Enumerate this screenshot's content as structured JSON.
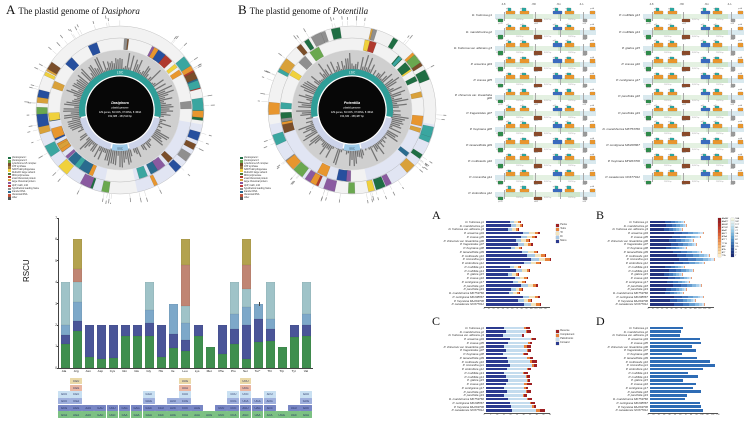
{
  "titles": {
    "panel_a": {
      "letter": "A",
      "text": "The plastid genome of",
      "species": "Dasiphora"
    },
    "panel_b": {
      "letter": "B",
      "text": "The plastid genome of",
      "species": "Potentilla"
    }
  },
  "circle_a": {
    "seed": 7,
    "center_lines": [
      "Dasiphora",
      "plastid genome",
      "129 genes, 84 CDS, 37 tRNA, 8 rRNA",
      "152,385 - 153,519 bp"
    ],
    "lsc_label": "LSC",
    "ssc_label": "SSC"
  },
  "circle_b": {
    "seed": 13,
    "center_lines": [
      "Potentilla",
      "plastid genome",
      "129 genes, 84 CDS, 37 tRNA, 8 rRNA",
      "154,330 - 158,487 bp"
    ],
    "lsc_label": "LSC",
    "ssc_label": "SSC"
  },
  "genome_legend": [
    {
      "label": "photosystem I",
      "color": "#1f6e43"
    },
    {
      "label": "photosystem II",
      "color": "#6aa84f"
    },
    {
      "label": "cytochrome b/f complex",
      "color": "#7a4e2a"
    },
    {
      "label": "ATP synthase",
      "color": "#9f7d3a"
    },
    {
      "label": "NADH dehydrogenase",
      "color": "#f5d33f"
    },
    {
      "label": "RubisCO large subunit",
      "color": "#4f7a3a"
    },
    {
      "label": "RNA polymerase",
      "color": "#b03a2e"
    },
    {
      "label": "small ribosomal protein",
      "color": "#d9a13a"
    },
    {
      "label": "large ribosomal protein",
      "color": "#8a5aa0"
    },
    {
      "label": "clpP, matK, infA",
      "color": "#c23b3b"
    },
    {
      "label": "hypothetical reading frame",
      "color": "#8f8f8f"
    },
    {
      "label": "transfer RNA",
      "color": "#2a6b8f"
    },
    {
      "label": "ribosomal RNA",
      "color": "#c2533b"
    },
    {
      "label": "other",
      "color": "#555555"
    }
  ],
  "gene_palette": [
    "#b03a2e",
    "#1f6e43",
    "#6aa84f",
    "#f0d13c",
    "#d9a13a",
    "#2a6b8f",
    "#3aa6a0",
    "#8a5aa0",
    "#7a4e2a",
    "#e8962e",
    "#8f8f8f",
    "#264f9e"
  ],
  "species": [
    "D. fruticosa g1",
    "D. mandshurica g2",
    "D. fruticosa var. albicans g3",
    "P. anserina g04",
    "P. crassa g05",
    "P. chinensis var. lineariloba g06",
    "P. fragarioides g07",
    "P. freyniana g08",
    "P. tanacetifolia g09",
    "P. multicaulis g10",
    "P. micrantha g11",
    "P. stolonifera g12",
    "P. multifida g13",
    "P. multifida g14",
    "P. glabra g15",
    "P. crassa g16",
    "P. centigrana g17",
    "P. parvifolia g18",
    "P. parvifolia g19",
    "D. mandshurica MK753766",
    "P. centigrana MK208867",
    "P. freyniana MH263706",
    "P. canadensis NC677012"
  ],
  "junctions": {
    "left_count": 12,
    "junction_labels": [
      "JLB",
      "JSB",
      "JSA",
      "JLA"
    ],
    "boundaries": [
      9,
      38,
      62,
      84
    ],
    "regions": [
      {
        "name": "LSC",
        "color": "#d9e9ee",
        "w": 9,
        "len": "85,742 bp"
      },
      {
        "name": "IRb",
        "color": "#cfe6cd",
        "w": 29,
        "len": "25,870 bp"
      },
      {
        "name": "SSC",
        "color": "#e4f1e2",
        "w": 24,
        "len": "18,347 bp"
      },
      {
        "name": "IRa",
        "color": "#cfe6cd",
        "w": 22,
        "len": "25,870 bp"
      },
      {
        "name": "LSC",
        "color": "#d9e9ee",
        "w": 16,
        "len": ""
      }
    ],
    "genes": [
      {
        "name": "rps19",
        "x": 3,
        "w": 5,
        "c": "#2e8b4a",
        "side": "b",
        "lab": "rps19"
      },
      {
        "name": "rpl2",
        "x": 10.5,
        "w": 8.5,
        "c": "#e8962e",
        "side": "a",
        "lab": "rpl2"
      },
      {
        "name": "trnI",
        "x": 12,
        "w": 3.2,
        "c": "#2aa7a0",
        "side": "t"
      },
      {
        "name": "ycf1",
        "x": 24,
        "w": 8.5,
        "c": "#e8962e",
        "side": "a",
        "lab": "ycf1"
      },
      {
        "name": "trnN",
        "x": 26,
        "w": 3.2,
        "c": "#2aa7a0",
        "side": "t"
      },
      {
        "name": "ndhF",
        "x": 37,
        "w": 7.5,
        "c": "#8a4a2a",
        "side": "b",
        "lab": "ndhF"
      },
      {
        "name": "ycf1",
        "x": 55,
        "w": 8.5,
        "c": "#3a6bbf",
        "side": "a",
        "lab": "ycf1"
      },
      {
        "name": "trnN",
        "x": 57,
        "w": 3.2,
        "c": "#2aa7a0",
        "side": "t"
      },
      {
        "name": "rpl2",
        "x": 67,
        "w": 8.5,
        "c": "#e8962e",
        "side": "a",
        "lab": "rpl2"
      },
      {
        "name": "trnI",
        "x": 69,
        "w": 3.2,
        "c": "#2aa7a0",
        "side": "t"
      },
      {
        "name": "trnH",
        "x": 83.5,
        "w": 4.5,
        "c": "#9a9a9a",
        "side": "b",
        "lab": "trnH"
      },
      {
        "name": "psbA",
        "x": 90.5,
        "w": 5,
        "c": "#e8962e",
        "side": "a",
        "lab": "psbA"
      }
    ]
  },
  "chart_data": [
    {
      "type": "bar",
      "stacked": true,
      "title": "",
      "ylabel": "RSCU",
      "ylim": [
        0,
        7
      ],
      "yticks": [
        0,
        1,
        2,
        3,
        4,
        5,
        6,
        7
      ],
      "grid": false,
      "seg_colors": [
        "#3f8f4f",
        "#4a5598",
        "#7da8c9",
        "#9fc3c8",
        "#c08573",
        "#b3a24e"
      ],
      "cell_colors": [
        "#7cc183",
        "#7886c4",
        "#9fb0dd",
        "#c9e0f2",
        "#eab6a2",
        "#ead9a8"
      ],
      "bars": [
        {
          "aa": "Ala",
          "codons": [
            "GCA",
            "GCG",
            "GCC",
            "GCU"
          ],
          "rscu": [
            1.1,
            0.45,
            0.45,
            2.0
          ]
        },
        {
          "aa": "Arg",
          "codons": [
            "AGA",
            "AGG",
            "CGA",
            "CGC",
            "CGG",
            "CGU"
          ],
          "rscu": [
            1.75,
            0.45,
            0.9,
            0.9,
            0.6,
            1.4
          ]
        },
        {
          "aa": "Asn",
          "codons": [
            "AAC",
            "AAU"
          ],
          "rscu": [
            0.5,
            1.5
          ]
        },
        {
          "aa": "Asp",
          "codons": [
            "GAC",
            "GAU"
          ],
          "rscu": [
            0.4,
            1.6
          ]
        },
        {
          "aa": "Cys",
          "codons": [
            "UGC",
            "UGU"
          ],
          "rscu": [
            0.45,
            1.55
          ]
        },
        {
          "aa": "Gln",
          "codons": [
            "CAA",
            "CAG"
          ],
          "rscu": [
            1.5,
            0.5
          ]
        },
        {
          "aa": "Glu",
          "codons": [
            "GAA",
            "GAG"
          ],
          "rscu": [
            1.5,
            0.5
          ]
        },
        {
          "aa": "Gly",
          "codons": [
            "GGA",
            "GGC",
            "GGG",
            "GGU"
          ],
          "rscu": [
            1.5,
            0.6,
            0.6,
            1.3
          ]
        },
        {
          "aa": "His",
          "codons": [
            "CAC",
            "CAU"
          ],
          "rscu": [
            0.5,
            1.5
          ]
        },
        {
          "aa": "Ile",
          "codons": [
            "AUA",
            "AUC",
            "AUU"
          ],
          "rscu": [
            0.95,
            0.65,
            1.4
          ]
        },
        {
          "aa": "Leu",
          "codons": [
            "CUA",
            "CUC",
            "CUG",
            "CUU",
            "UUA",
            "UUG"
          ],
          "rscu": [
            0.8,
            0.5,
            0.8,
            0.8,
            1.9,
            1.2
          ]
        },
        {
          "aa": "Lys",
          "codons": [
            "AAA",
            "AAG"
          ],
          "rscu": [
            1.5,
            0.5
          ]
        },
        {
          "aa": "Met",
          "codons": [
            "AUG"
          ],
          "rscu": [
            1.0
          ]
        },
        {
          "aa": "Phe",
          "codons": [
            "UUC",
            "UUU"
          ],
          "rscu": [
            0.65,
            1.35
          ]
        },
        {
          "aa": "Pro",
          "codons": [
            "CCA",
            "CCC",
            "CCG",
            "CCU"
          ],
          "rscu": [
            1.1,
            0.7,
            0.7,
            1.5
          ]
        },
        {
          "aa": "Ser",
          "codons": [
            "AGC",
            "AGU",
            "UCA",
            "UCC",
            "UCG",
            "UCU"
          ],
          "rscu": [
            0.4,
            1.6,
            0.85,
            0.85,
            1.1,
            1.2
          ]
        },
        {
          "aa": "Ter*",
          "codons": [
            "UAA",
            "UAG",
            "UGA"
          ],
          "rscu": [
            1.2,
            1.1,
            0.7
          ],
          "err": true
        },
        {
          "aa": "Thr",
          "codons": [
            "ACA",
            "ACC",
            "ACG",
            "ACU"
          ],
          "rscu": [
            1.25,
            0.55,
            0.5,
            1.7
          ]
        },
        {
          "aa": "Trp",
          "codons": [
            "UGG"
          ],
          "rscu": [
            1.0
          ]
        },
        {
          "aa": "Tyr",
          "codons": [
            "UAC",
            "UAU"
          ],
          "rscu": [
            1.45,
            0.55
          ]
        },
        {
          "aa": "Val",
          "codons": [
            "GUA",
            "GUC",
            "GUG",
            "GUU"
          ],
          "rscu": [
            1.5,
            0.5,
            0.5,
            1.5
          ]
        }
      ]
    },
    {
      "type": "bar",
      "orientation": "horizontal",
      "stacked": true,
      "letter": "A",
      "series": [
        "Mono",
        "Di",
        "Tri",
        "Tetra",
        "Penta"
      ],
      "colors": [
        "#2b3a8f",
        "#a9c9e5",
        "#f2e4bd",
        "#e8823a",
        "#9e2023"
      ],
      "legend": [
        "Penta",
        "Tetra",
        "Tri",
        "Di",
        "Mono"
      ],
      "legend_colors": [
        "#9e2023",
        "#e8823a",
        "#f2e4bd",
        "#a9c9e5",
        "#2b3a8f"
      ],
      "xlim": [
        0,
        140
      ],
      "xticks": [
        0,
        10,
        20,
        30,
        40,
        50,
        60,
        70,
        80,
        90,
        100,
        110,
        120,
        130
      ],
      "values": [
        [
          50,
          9,
          8,
          5,
          2
        ],
        [
          54,
          10,
          8,
          5,
          2
        ],
        [
          47,
          9,
          7,
          5,
          1
        ],
        [
          78,
          14,
          12,
          7,
          3
        ],
        [
          74,
          13,
          11,
          7,
          3
        ],
        [
          63,
          12,
          10,
          6,
          2
        ],
        [
          68,
          12,
          10,
          6,
          3
        ],
        [
          52,
          10,
          8,
          5,
          2
        ],
        [
          76,
          14,
          11,
          7,
          3
        ],
        [
          88,
          16,
          13,
          8,
          3
        ],
        [
          95,
          17,
          14,
          9,
          3
        ],
        [
          80,
          15,
          12,
          7,
          3
        ],
        [
          50,
          9,
          8,
          5,
          2
        ],
        [
          64,
          12,
          10,
          6,
          2
        ],
        [
          47,
          9,
          7,
          4,
          2
        ],
        [
          61,
          11,
          9,
          6,
          2
        ],
        [
          57,
          11,
          9,
          5,
          2
        ],
        [
          75,
          14,
          11,
          7,
          3
        ],
        [
          53,
          10,
          8,
          5,
          1
        ],
        [
          49,
          9,
          8,
          5,
          1
        ],
        [
          78,
          14,
          12,
          7,
          3
        ],
        [
          68,
          12,
          10,
          6,
          2
        ],
        [
          80,
          15,
          12,
          7,
          3
        ]
      ]
    },
    {
      "type": "bar",
      "orientation": "horizontal",
      "stacked": true,
      "letter": "B",
      "series": [
        "A",
        "T",
        "AT",
        "TA",
        "AAT",
        "ATT",
        "AAAT",
        "AATT"
      ],
      "colors": [
        "#22337f",
        "#2f5aa6",
        "#4579bc",
        "#639bd0",
        "#86b8e0",
        "#abd0ec",
        "#cfe3f4",
        "#e8a07a"
      ],
      "fractions": [
        0.44,
        0.15,
        0.12,
        0.1,
        0.08,
        0.05,
        0.04,
        0.02
      ],
      "totals": [
        74,
        79,
        69,
        114,
        108,
        93,
        99,
        77,
        111,
        128,
        138,
        117,
        74,
        94,
        69,
        89,
        84,
        110,
        77,
        72,
        114,
        98,
        117
      ],
      "xlim": [
        0,
        140
      ],
      "xticks": [
        0,
        10,
        20,
        30,
        40,
        50,
        60,
        70,
        80,
        90,
        100,
        110,
        120,
        130
      ],
      "legend2": {
        "left": [
          {
            "label": "AAAAT",
            "color": "#8e1b1e"
          },
          {
            "label": "AAATT",
            "color": "#9f2020"
          },
          {
            "label": "AATAT",
            "color": "#b02a22"
          },
          {
            "label": "ATTAT",
            "color": "#c13a27"
          },
          {
            "label": "AAAT",
            "color": "#cf4c2d"
          },
          {
            "label": "AATT",
            "color": "#da6136"
          },
          {
            "label": "ATAA",
            "color": "#e37641"
          },
          {
            "label": "ATTT",
            "color": "#ea8b4e"
          },
          {
            "label": "TTTA",
            "color": "#f0a05e"
          },
          {
            "label": "AAT",
            "color": "#f4b573"
          },
          {
            "label": "ATA",
            "color": "#f7c88c"
          },
          {
            "label": "ATT",
            "color": "#fadbaa"
          },
          {
            "label": "TTA",
            "color": "#fcebc8"
          }
        ],
        "right": [
          {
            "label": "TAA",
            "color": "#f2f6e3"
          },
          {
            "label": "TAT",
            "color": "#e2eff0"
          },
          {
            "label": "TCT",
            "color": "#cbe5ef"
          },
          {
            "label": "AG",
            "color": "#b1d8ec"
          },
          {
            "label": "CT",
            "color": "#95c8e5"
          },
          {
            "label": "GA",
            "color": "#7ab5dc"
          },
          {
            "label": "TC",
            "color": "#60a1d1"
          },
          {
            "label": "AT",
            "color": "#4b8bc4"
          },
          {
            "label": "TA",
            "color": "#3b74b4"
          },
          {
            "label": "CG",
            "color": "#2f5fa4"
          },
          {
            "label": "A",
            "color": "#264b93"
          },
          {
            "label": "C",
            "color": "#203a83"
          },
          {
            "label": "T",
            "color": "#1b2a72"
          }
        ]
      }
    },
    {
      "type": "bar",
      "orientation": "horizontal",
      "stacked": true,
      "letter": "C",
      "series": [
        "Forward",
        "Palindromic",
        "Complement",
        "Reverse"
      ],
      "colors": [
        "#2b3a8f",
        "#c4dcee",
        "#e8823a",
        "#9e2023"
      ],
      "legend": [
        "Reverse",
        "Complement",
        "Palindromic",
        "Forward"
      ],
      "legend_colors": [
        "#9e2023",
        "#e8823a",
        "#c4dcee",
        "#2b3a8f"
      ],
      "xlim": [
        0,
        50
      ],
      "xticks": [
        0,
        5,
        10,
        15,
        20,
        25,
        30,
        35,
        40,
        45,
        50
      ],
      "values": [
        [
          14,
          15,
          1,
          3
        ],
        [
          15,
          15,
          1,
          3
        ],
        [
          13,
          14,
          0,
          2
        ],
        [
          18,
          16,
          1,
          3
        ],
        [
          17,
          15,
          1,
          2
        ],
        [
          14,
          15,
          2,
          3
        ],
        [
          15,
          16,
          1,
          2
        ],
        [
          13,
          15,
          1,
          3
        ],
        [
          16,
          15,
          2,
          3
        ],
        [
          17,
          16,
          2,
          4
        ],
        [
          18,
          17,
          1,
          3
        ],
        [
          16,
          15,
          1,
          2
        ],
        [
          14,
          14,
          1,
          3
        ],
        [
          15,
          15,
          1,
          2
        ],
        [
          17,
          14,
          1,
          1
        ],
        [
          15,
          14,
          2,
          4
        ],
        [
          14,
          15,
          1,
          2
        ],
        [
          16,
          14,
          1,
          3
        ],
        [
          14,
          14,
          1,
          2
        ],
        [
          17,
          14,
          1,
          3
        ],
        [
          18,
          15,
          1,
          3
        ],
        [
          19,
          16,
          1,
          2
        ],
        [
          20,
          18,
          3,
          4
        ]
      ]
    },
    {
      "type": "bar",
      "orientation": "horizontal",
      "stacked": false,
      "letter": "D",
      "series": [
        "count"
      ],
      "colors": [
        "#2e6cb5"
      ],
      "xlim": [
        0,
        130
      ],
      "xticks": [
        0,
        10,
        20,
        30,
        40,
        50,
        60,
        70,
        80,
        90,
        100,
        110,
        120,
        130
      ],
      "values": [
        62,
        58,
        55,
        92,
        95,
        78,
        85,
        60,
        88,
        112,
        120,
        98,
        70,
        90,
        62,
        85,
        80,
        95,
        68,
        65,
        92,
        95,
        98
      ]
    }
  ]
}
